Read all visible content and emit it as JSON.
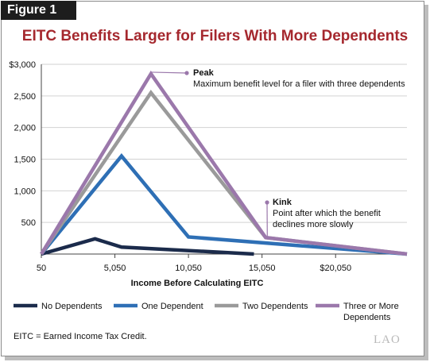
{
  "figure_label": "Figure 1",
  "footnote": "EITC = Earned Income Tax Credit.",
  "logo": "LAO",
  "colors": {
    "title": "#a5282e",
    "no_dependents": "#1b2b4b",
    "one_dependent": "#2e6fb5",
    "two_dependents": "#9a9a9a",
    "three_or_more": "#9b78ab",
    "annotation_dot": "#9b78ab"
  },
  "chart_data": {
    "type": "line",
    "title": "EITC Benefits Larger for Filers With More Dependents",
    "xlabel": "Income Before Calculating EITC",
    "ylabel": "",
    "xlim": [
      50,
      24900
    ],
    "ylim": [
      0,
      3000
    ],
    "x_ticks": [
      {
        "value": 50,
        "label": "50"
      },
      {
        "value": 5050,
        "label": "5,050"
      },
      {
        "value": 10050,
        "label": "10,050"
      },
      {
        "value": 15050,
        "label": "15,050"
      },
      {
        "value": 20050,
        "label": "$20,050"
      }
    ],
    "y_ticks": [
      {
        "value": 500,
        "label": "500"
      },
      {
        "value": 1000,
        "label": "1,000"
      },
      {
        "value": 1500,
        "label": "1,500"
      },
      {
        "value": 2000,
        "label": "2,000"
      },
      {
        "value": 2500,
        "label": "2,500"
      },
      {
        "value": 3000,
        "label": "$3,000"
      }
    ],
    "grid": "horizontal",
    "series": [
      {
        "name": "No Dependents",
        "color": "#1b2b4b",
        "points": [
          [
            50,
            0
          ],
          [
            3700,
            240
          ],
          [
            5500,
            110
          ],
          [
            14500,
            0
          ]
        ]
      },
      {
        "name": "One Dependent",
        "color": "#2e6fb5",
        "points": [
          [
            50,
            0
          ],
          [
            5500,
            1550
          ],
          [
            10050,
            270
          ],
          [
            24900,
            0
          ]
        ]
      },
      {
        "name": "Two Dependents",
        "color": "#9a9a9a",
        "points": [
          [
            50,
            0
          ],
          [
            7500,
            2550
          ],
          [
            15300,
            260
          ],
          [
            24900,
            0
          ]
        ]
      },
      {
        "name": "Three or More Dependents",
        "color": "#9b78ab",
        "points": [
          [
            50,
            0
          ],
          [
            7500,
            2850
          ],
          [
            15300,
            260
          ],
          [
            24900,
            0
          ]
        ]
      }
    ],
    "legend": {
      "position": "bottom",
      "items": [
        {
          "label": "No Dependents"
        },
        {
          "label": "One Dependent"
        },
        {
          "label": "Two Dependents"
        },
        {
          "label_lines": [
            "Three or More",
            "Dependents"
          ]
        }
      ]
    },
    "annotations": [
      {
        "title": "Peak",
        "lines": [
          "Maximum benefit level for a filer with three dependents"
        ],
        "anchor": [
          7500,
          2850
        ]
      },
      {
        "title": "Kink",
        "lines": [
          "Point after which the benefit",
          "declines more slowly"
        ],
        "anchor": [
          15300,
          260
        ]
      }
    ]
  }
}
